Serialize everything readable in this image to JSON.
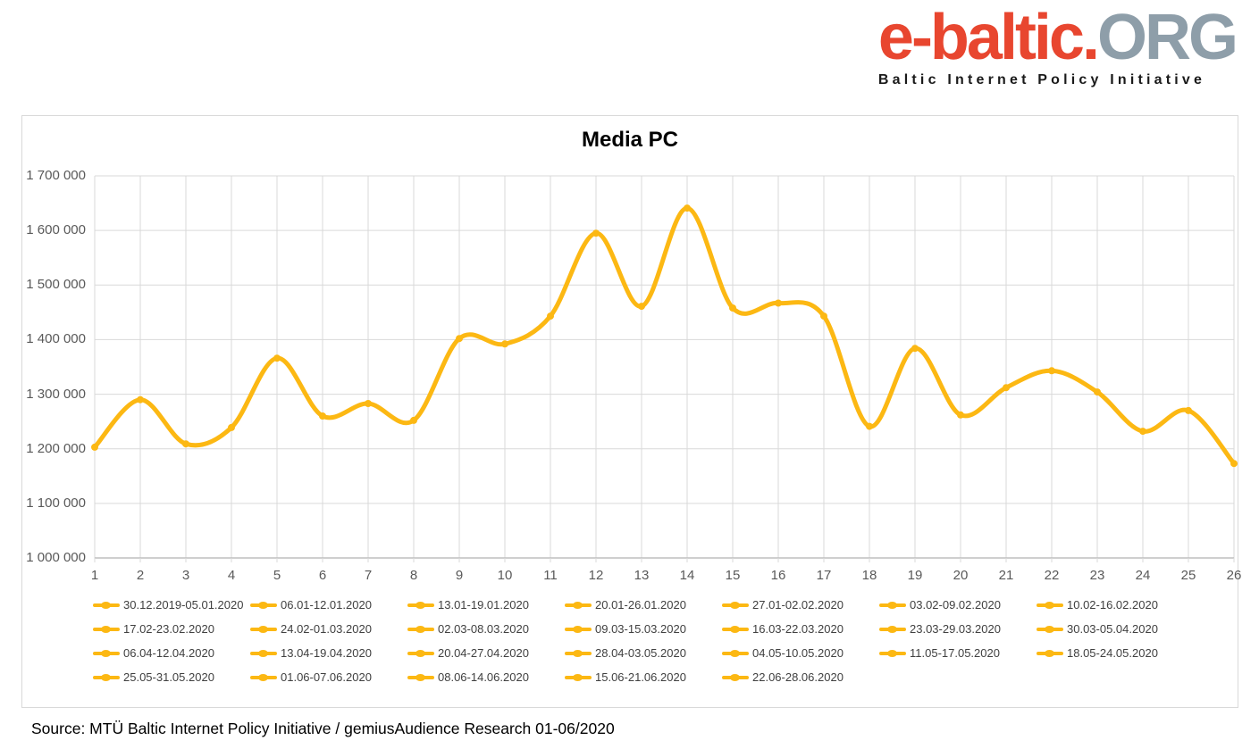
{
  "logo": {
    "brand_red": "e-baltic.",
    "brand_gray": "ORG",
    "tagline": "Baltic Internet Policy Initiative",
    "red_color": "#E8462F",
    "gray_color": "#8E9EA9"
  },
  "chart_data": {
    "type": "line",
    "title": "Media PC",
    "xlabel": "",
    "ylabel": "",
    "x": [
      1,
      2,
      3,
      4,
      5,
      6,
      7,
      8,
      9,
      10,
      11,
      12,
      13,
      14,
      15,
      16,
      17,
      18,
      19,
      20,
      21,
      22,
      23,
      24,
      25,
      26
    ],
    "values": [
      1203000,
      1290000,
      1209000,
      1239000,
      1366000,
      1260000,
      1283000,
      1252000,
      1402000,
      1392000,
      1443000,
      1595000,
      1461000,
      1641000,
      1458000,
      1467000,
      1443000,
      1241000,
      1384000,
      1262000,
      1312000,
      1343000,
      1304000,
      1232000,
      1270000,
      1173000
    ],
    "ylim": [
      1000000,
      1700000
    ],
    "ytick_step": 100000,
    "ytick_labels": [
      "1 000 000",
      "1 100 000",
      "1 200 000",
      "1 300 000",
      "1 400 000",
      "1 500 000",
      "1 600 000",
      "1 700 000"
    ],
    "grid": true,
    "smooth": true,
    "legend_position": "bottom",
    "line_color": "#FCB813",
    "grid_color": "#D9D9D9",
    "axis_color": "#BFBFBF",
    "tick_label_color": "#595959",
    "legend_text_color": "#404040",
    "legend_entries": [
      "30.12.2019-05.01.2020",
      "06.01-12.01.2020",
      "13.01-19.01.2020",
      "20.01-26.01.2020",
      "27.01-02.02.2020",
      "03.02-09.02.2020",
      "10.02-16.02.2020",
      "17.02-23.02.2020",
      "24.02-01.03.2020",
      "02.03-08.03.2020",
      "09.03-15.03.2020",
      "16.03-22.03.2020",
      "23.03-29.03.2020",
      "30.03-05.04.2020",
      "06.04-12.04.2020",
      "13.04-19.04.2020",
      "20.04-27.04.2020",
      "28.04-03.05.2020",
      "04.05-10.05.2020",
      "11.05-17.05.2020",
      "18.05-24.05.2020",
      "25.05-31.05.2020",
      "01.06-07.06.2020",
      "08.06-14.06.2020",
      "15.06-21.06.2020",
      "22.06-28.06.2020"
    ]
  },
  "source": {
    "text": "Source: MTÜ Baltic Internet Policy Initiative / gemiusAudience Research 01-06/2020"
  }
}
